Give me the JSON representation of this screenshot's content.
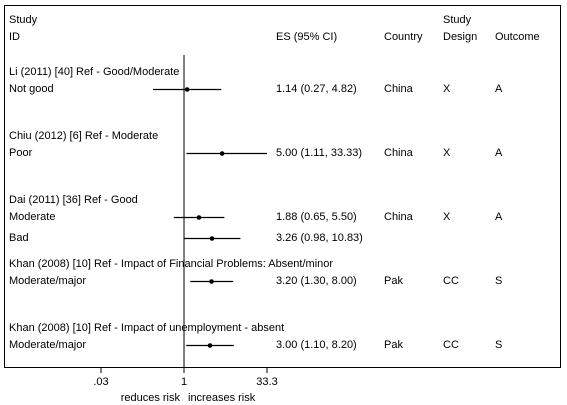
{
  "headers": {
    "study_line1": "Study",
    "study_line2": "ID",
    "es": "ES (95% CI)",
    "country": "Country",
    "design_line1": "Study",
    "design_line2": "Design",
    "outcome": "Outcome"
  },
  "chart_data": {
    "type": "forest",
    "xscale": "log",
    "null_value": 1,
    "xticks": [
      {
        "value": 0.03,
        "label": ".03"
      },
      {
        "value": 1,
        "label": "1"
      },
      {
        "value": 33.3,
        "label": "33.3"
      }
    ],
    "xaxis_notes": {
      "left": "reduces risk",
      "right": "increases risk"
    },
    "groups": [
      {
        "title": "Li (2011) [40] Ref - Good/Moderate",
        "rows": [
          {
            "label": "Not good",
            "es": 1.14,
            "lo": 0.27,
            "hi": 4.82,
            "es_text": "1.14 (0.27, 4.82)",
            "country": "China",
            "design": "X",
            "outcome": "A"
          }
        ]
      },
      {
        "title": "Chiu (2012) [6] Ref - Moderate",
        "rows": [
          {
            "label": "Poor",
            "es": 5.0,
            "lo": 1.11,
            "hi": 33.33,
            "es_text": "5.00 (1.11, 33.33)",
            "country": "China",
            "design": "X",
            "outcome": "A"
          }
        ]
      },
      {
        "title": "Dai (2011) [36] Ref - Good",
        "rows": [
          {
            "label": "Moderate",
            "es": 1.88,
            "lo": 0.65,
            "hi": 5.5,
            "es_text": "1.88 (0.65, 5.50)",
            "country": "China",
            "design": "X",
            "outcome": "A"
          },
          {
            "label": "Bad",
            "es": 3.26,
            "lo": 0.98,
            "hi": 10.83,
            "es_text": "3.26 (0.98, 10.83)",
            "country": "",
            "design": "",
            "outcome": ""
          }
        ]
      },
      {
        "title": "Khan (2008) [10] Ref - Impact of Financial Problems: Absent/minor",
        "rows": [
          {
            "label": "Moderate/major",
            "es": 3.2,
            "lo": 1.3,
            "hi": 8.0,
            "es_text": "3.20 (1.30, 8.00)",
            "country": "Pak",
            "design": "CC",
            "outcome": "S"
          }
        ]
      },
      {
        "title": "Khan (2008) [10] Ref - Impact of unemployment - absent",
        "rows": [
          {
            "label": "Moderate/major",
            "es": 3.0,
            "lo": 1.1,
            "hi": 8.2,
            "es_text": "3.00 (1.10, 8.20)",
            "country": "Pak",
            "design": "CC",
            "outcome": "S"
          }
        ]
      }
    ]
  }
}
